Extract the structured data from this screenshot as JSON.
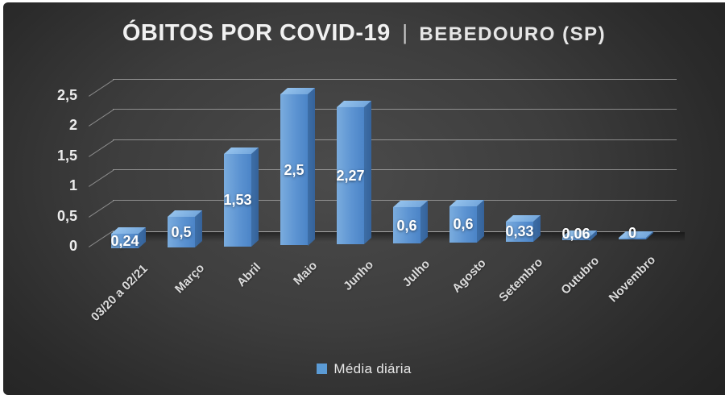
{
  "title": {
    "main": "ÓBITOS POR COVID-19",
    "separator": "|",
    "location": "BEBEDOURO (SP)"
  },
  "legend": {
    "label": "Média diária",
    "marker_color": "#5B9BD5"
  },
  "colors": {
    "background_center": "#4b4b4b",
    "background_edge": "#232323",
    "frame": "#ffffff",
    "bar_front": "#5B9BD5",
    "bar_top": "#8FBFEA",
    "bar_side": "#3A6CA3",
    "gridline": "rgba(255,255,255,0.42)",
    "text": "#f1f1f1"
  },
  "chart_data": {
    "type": "bar",
    "style": "3d-column",
    "title": "ÓBITOS POR COVID-19 | BEBEDOURO (SP)",
    "categories": [
      "03/20 a 02/21",
      "Março",
      "Abril",
      "Maio",
      "Junho",
      "Julho",
      "Agosto",
      "Setembro",
      "Outubro",
      "Novembro"
    ],
    "series": [
      {
        "name": "Média diária",
        "values": [
          0.24,
          0.5,
          1.53,
          2.5,
          2.27,
          0.6,
          0.6,
          0.33,
          0.06,
          0
        ]
      }
    ],
    "value_labels": [
      "0,24",
      "0,5",
      "1,53",
      "2,5",
      "2,27",
      "0,6",
      "0,6",
      "0,33",
      "0,06",
      "0"
    ],
    "y_ticks": {
      "values": [
        0,
        0.5,
        1,
        1.5,
        2,
        2.5
      ],
      "labels": [
        "0",
        "0,5",
        "1",
        "1,5",
        "2",
        "2,5"
      ]
    },
    "ylim": [
      0,
      2.5
    ],
    "grid": true,
    "legend_position": "bottom",
    "xlabel": "",
    "ylabel": ""
  }
}
